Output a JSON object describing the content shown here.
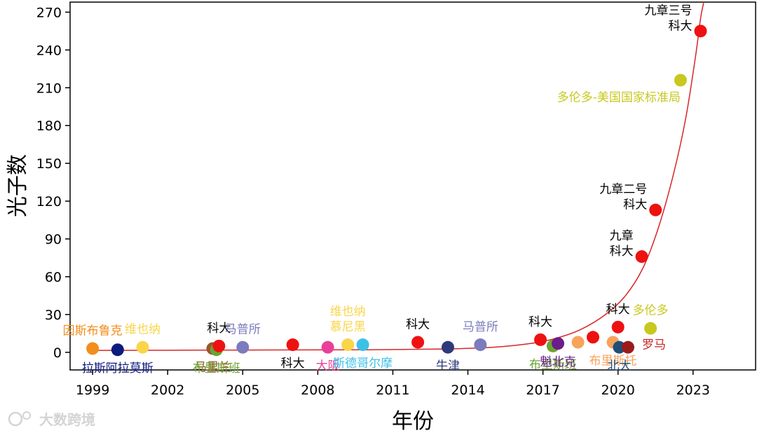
{
  "chart_data": {
    "type": "scatter",
    "xlabel": "年份",
    "ylabel": "光子数",
    "xlim": [
      1998.1,
      2025.5
    ],
    "ylim": [
      -14,
      278
    ],
    "xticks": [
      1999,
      2002,
      2005,
      2008,
      2011,
      2014,
      2017,
      2020,
      2023
    ],
    "yticks": [
      0,
      30,
      60,
      90,
      120,
      150,
      180,
      210,
      240,
      270
    ],
    "grid": false,
    "trend_curve": {
      "color": "#d62728",
      "points": [
        [
          1999,
          1.5
        ],
        [
          2005,
          1.8
        ],
        [
          2010,
          2.0
        ],
        [
          2013,
          2.6
        ],
        [
          2015,
          4.0
        ],
        [
          2016.5,
          7.0
        ],
        [
          2017.5,
          11
        ],
        [
          2018.5,
          18
        ],
        [
          2019.5,
          30
        ],
        [
          2020.3,
          45
        ],
        [
          2021,
          67
        ],
        [
          2021.6,
          98
        ],
        [
          2022.2,
          140
        ],
        [
          2022.7,
          185
        ],
        [
          2023.1,
          235
        ],
        [
          2023.3,
          265
        ],
        [
          2023.45,
          280
        ]
      ]
    },
    "points": [
      {
        "x": 1999.0,
        "y": 3,
        "color": "#f28e1c",
        "label": "因斯布鲁克",
        "label_color": "#f28e1c",
        "label_pos": "above"
      },
      {
        "x": 2000.0,
        "y": 2,
        "color": "#0d1a7e",
        "label": "拉斯阿拉莫斯",
        "label_color": "#0d1a7e",
        "label_pos": "below"
      },
      {
        "x": 2001.0,
        "y": 4,
        "color": "#fad54a",
        "label": "维也纳",
        "label_color": "#fad54a",
        "label_pos": "above"
      },
      {
        "x": 2003.8,
        "y": 3,
        "color": "#a0522d",
        "label": "马里兰",
        "label_color": "#a0522d",
        "label_pos": "below"
      },
      {
        "x": 2003.95,
        "y": 2,
        "color": "#6aa531",
        "label": "布里斯班",
        "label_color": "#6aa531",
        "label_pos": "below"
      },
      {
        "x": 2004.05,
        "y": 5,
        "color": "#ee1111",
        "label": "科大",
        "label_color": "#000000",
        "label_pos": "above"
      },
      {
        "x": 2005.0,
        "y": 4,
        "color": "#7b7bbd",
        "label": "马普所",
        "label_color": "#7b7bbd",
        "label_pos": "above"
      },
      {
        "x": 2007.0,
        "y": 6,
        "color": "#ee1111",
        "label": "科大",
        "label_color": "#000000",
        "label_pos": "below"
      },
      {
        "x": 2008.4,
        "y": 4,
        "color": "#e8409a",
        "label": "大阪",
        "label_color": "#e8409a",
        "label_pos": "below"
      },
      {
        "x": 2009.2,
        "y": 6,
        "color": "#fad54a",
        "label": "维也纳\n慕尼黑",
        "label_color": "#fad54a",
        "label_pos": "above"
      },
      {
        "x": 2009.8,
        "y": 6,
        "color": "#3dc0e8",
        "label": "斯德哥尔摩",
        "label_color": "#3dc0e8",
        "label_pos": "below"
      },
      {
        "x": 2012.0,
        "y": 8,
        "color": "#ee1111",
        "label": "科大",
        "label_color": "#000000",
        "label_pos": "above"
      },
      {
        "x": 2013.2,
        "y": 4,
        "color": "#2e3a7a",
        "label": "牛津",
        "label_color": "#2e3a7a",
        "label_pos": "below"
      },
      {
        "x": 2014.5,
        "y": 6,
        "color": "#7b7bbd",
        "label": "马普所",
        "label_color": "#7b7bbd",
        "label_pos": "above"
      },
      {
        "x": 2016.9,
        "y": 10,
        "color": "#ee1111",
        "label": "科大",
        "label_color": "#000000",
        "label_pos": "above"
      },
      {
        "x": 2017.4,
        "y": 5,
        "color": "#6aa531",
        "label": "布里斯班",
        "label_color": "#6aa531",
        "label_pos": "below"
      },
      {
        "x": 2017.6,
        "y": 7,
        "color": "#6b1d8a",
        "label": "魁北克",
        "label_color": "#6b1d8a",
        "label_pos": "below"
      },
      {
        "x": 2018.4,
        "y": 8,
        "color": "#f7a35c",
        "label": "",
        "label_color": "#f7a35c",
        "label_pos": "none"
      },
      {
        "x": 2019.0,
        "y": 12,
        "color": "#ee1111",
        "label": "",
        "label_color": "#000000",
        "label_pos": "none"
      },
      {
        "x": 2019.8,
        "y": 8,
        "color": "#f7a35c",
        "label": "布里斯托",
        "label_color": "#f7a35c",
        "label_pos": "below"
      },
      {
        "x": 2020.0,
        "y": 20,
        "color": "#ee1111",
        "label": "科大",
        "label_color": "#000000",
        "label_pos": "above"
      },
      {
        "x": 2020.05,
        "y": 4,
        "color": "#1f4e79",
        "label": "北大",
        "label_color": "#1f4e79",
        "label_pos": "below"
      },
      {
        "x": 2020.4,
        "y": 4,
        "color": "#9b1b1b",
        "label": "罗马",
        "label_color": "#c62828",
        "label_pos": "right"
      },
      {
        "x": 2021.3,
        "y": 19,
        "color": "#c8c820",
        "label": "多伦多",
        "label_color": "#c8c820",
        "label_pos": "above"
      },
      {
        "x": 2020.95,
        "y": 76,
        "color": "#ee1111",
        "label": "九章\n科大",
        "label_color": "#000000",
        "label_pos": "left"
      },
      {
        "x": 2021.5,
        "y": 113,
        "color": "#ee1111",
        "label": "九章二号\n科大",
        "label_color": "#000000",
        "label_pos": "left"
      },
      {
        "x": 2022.5,
        "y": 216,
        "color": "#c8c820",
        "label": "多伦多-美国国家标准局",
        "label_color": "#c8c820",
        "label_pos": "below-left"
      },
      {
        "x": 2023.3,
        "y": 255,
        "color": "#ee1111",
        "label": "九章三号\n科大",
        "label_color": "#000000",
        "label_pos": "left"
      }
    ]
  },
  "watermark": "大数跨境"
}
